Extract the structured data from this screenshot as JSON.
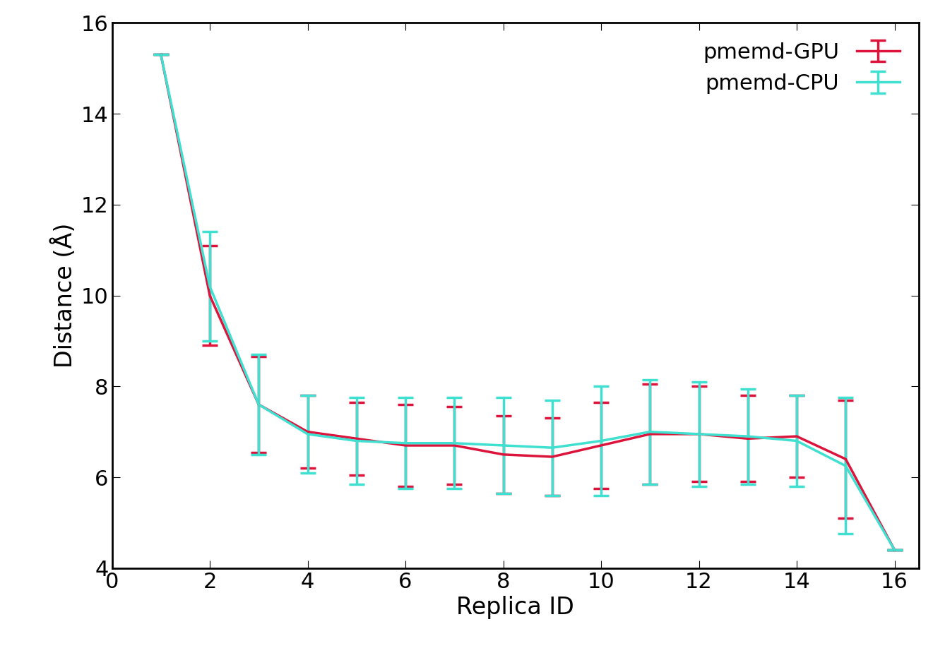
{
  "chart_data": {
    "type": "line",
    "x_label": "Replica ID",
    "y_label": "Distance (Å)",
    "x": [
      1,
      2,
      3,
      4,
      5,
      6,
      7,
      8,
      9,
      10,
      11,
      12,
      13,
      14,
      15,
      16
    ],
    "series": [
      {
        "name": "pmemd-GPU",
        "color": "#dc143c",
        "values": [
          15.3,
          10.0,
          7.6,
          7.0,
          6.85,
          6.7,
          6.7,
          6.5,
          6.45,
          6.7,
          6.95,
          6.95,
          6.85,
          6.9,
          6.4,
          4.4
        ],
        "error": [
          0,
          1.1,
          1.05,
          0.8,
          0.8,
          0.9,
          0.85,
          0.85,
          0.85,
          0.95,
          1.1,
          1.05,
          0.95,
          0.9,
          1.3,
          0
        ]
      },
      {
        "name": "pmemd-CPU",
        "color": "#40e0d0",
        "values": [
          15.3,
          10.2,
          7.6,
          6.95,
          6.8,
          6.75,
          6.75,
          6.7,
          6.65,
          6.8,
          7.0,
          6.95,
          6.9,
          6.8,
          6.25,
          4.4
        ],
        "error": [
          0,
          1.2,
          1.1,
          0.85,
          0.95,
          1.0,
          1.0,
          1.05,
          1.05,
          1.2,
          1.15,
          1.15,
          1.05,
          1.0,
          1.5,
          0
        ]
      }
    ],
    "xlim": [
      0,
      16.5
    ],
    "xticks": [
      0,
      2,
      4,
      6,
      8,
      10,
      12,
      14,
      16
    ],
    "ylim": [
      4,
      16
    ],
    "yticks": [
      4,
      6,
      8,
      10,
      12,
      14,
      16
    ],
    "legend": "upper right",
    "grid": false
  }
}
